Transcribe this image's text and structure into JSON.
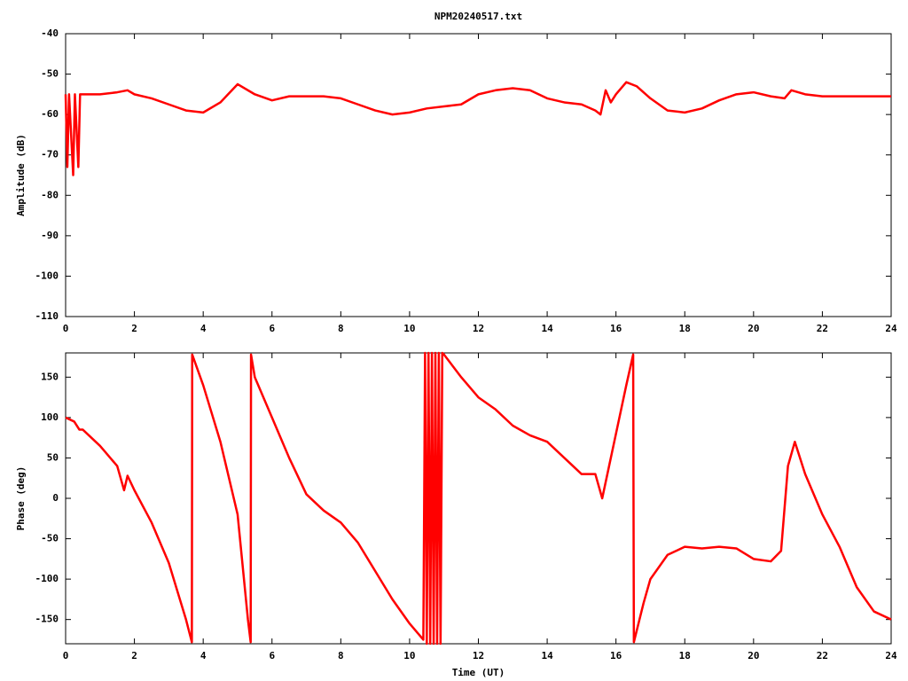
{
  "chart_data": [
    {
      "type": "line",
      "title": "NPM20240517.txt",
      "ylabel": "Amplitude (dB)",
      "color": "#ff0000",
      "xlim": [
        0,
        24
      ],
      "ylim": [
        -110,
        -40
      ],
      "xticks": [
        0,
        2,
        4,
        6,
        8,
        10,
        12,
        14,
        16,
        18,
        20,
        22,
        24
      ],
      "yticks": [
        -110,
        -100,
        -90,
        -80,
        -70,
        -60,
        -50,
        -40
      ],
      "x": [
        0,
        0.05,
        0.1,
        0.22,
        0.27,
        0.37,
        0.42,
        0.5,
        1,
        1.5,
        1.8,
        2,
        2.5,
        3,
        3.5,
        4,
        4.5,
        5,
        5.5,
        6,
        6.5,
        7,
        7.5,
        8,
        8.5,
        9,
        9.5,
        10,
        10.5,
        11,
        11.5,
        12,
        12.5,
        13,
        13.5,
        14,
        14.5,
        15,
        15.4,
        15.55,
        15.7,
        15.85,
        16,
        16.3,
        16.6,
        17,
        17.5,
        18,
        18.5,
        19,
        19.5,
        20,
        20.5,
        20.9,
        21.1,
        21.5,
        22,
        22.5,
        23,
        23.5,
        24
      ],
      "values": [
        -55,
        -73,
        -55,
        -75,
        -55,
        -73,
        -55,
        -55,
        -55,
        -54.5,
        -54,
        -55,
        -56,
        -57.5,
        -59,
        -59.5,
        -57,
        -52.5,
        -55,
        -56.5,
        -55.5,
        -55.5,
        -55.5,
        -56,
        -57.5,
        -59,
        -60,
        -59.5,
        -58.5,
        -58,
        -57.5,
        -55,
        -54,
        -53.5,
        -54,
        -56,
        -57,
        -57.5,
        -59,
        -60,
        -54,
        -57,
        -55,
        -52,
        -53,
        -56,
        -59,
        -59.5,
        -58.5,
        -56.5,
        -55,
        -54.5,
        -55.5,
        -56,
        -54,
        -55,
        -55.5,
        -55.5,
        -55.5,
        -55.5,
        -55.5
      ]
    },
    {
      "type": "line",
      "xlabel": "Time (UT)",
      "ylabel": "Phase (deg)",
      "color": "#ff0000",
      "xlim": [
        0,
        24
      ],
      "ylim": [
        -180,
        180
      ],
      "xticks": [
        0,
        2,
        4,
        6,
        8,
        10,
        12,
        14,
        16,
        18,
        20,
        22,
        24
      ],
      "yticks": [
        -150,
        -100,
        -50,
        0,
        50,
        100,
        150
      ],
      "x": [
        0,
        0.25,
        0.4,
        0.5,
        1,
        1.5,
        1.7,
        1.8,
        2,
        2.5,
        3,
        3.5,
        3.67,
        3.68,
        4,
        4.5,
        5,
        5.3,
        5.38,
        5.39,
        5.5,
        6,
        6.5,
        7,
        7.5,
        8,
        8.5,
        9,
        9.5,
        10,
        10.4,
        10.45,
        10.5,
        10.55,
        10.6,
        10.65,
        10.7,
        10.75,
        10.8,
        10.85,
        10.9,
        10.95,
        11,
        11.5,
        12,
        12.5,
        13,
        13.5,
        14,
        14.5,
        15,
        15.4,
        15.6,
        15.8,
        16,
        16.3,
        16.5,
        16.52,
        16.8,
        17,
        17.5,
        18,
        18.5,
        19,
        19.5,
        20,
        20.5,
        20.8,
        21,
        21.2,
        21.5,
        22,
        22.5,
        23,
        23.5,
        24
      ],
      "values": [
        100,
        95,
        85,
        85,
        65,
        40,
        10,
        28,
        10,
        -30,
        -80,
        -150,
        -178,
        178,
        140,
        70,
        -20,
        -150,
        -178,
        178,
        150,
        100,
        50,
        5,
        -15,
        -30,
        -55,
        -90,
        -125,
        -155,
        -175,
        180,
        -180,
        180,
        -180,
        180,
        -180,
        180,
        -180,
        180,
        -180,
        180,
        178,
        150,
        125,
        110,
        90,
        78,
        70,
        50,
        30,
        30,
        0,
        40,
        80,
        140,
        178,
        -178,
        -130,
        -100,
        -70,
        -60,
        -62,
        -60,
        -62,
        -75,
        -78,
        -65,
        40,
        70,
        30,
        -20,
        -60,
        -110,
        -140,
        -150
      ]
    }
  ]
}
